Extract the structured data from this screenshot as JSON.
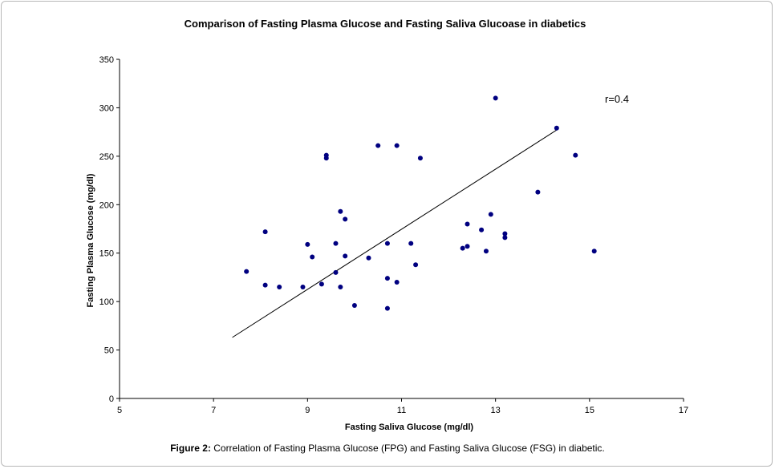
{
  "chart_data": {
    "type": "scatter",
    "title": "Comparison of Fasting Plasma Glucose and Fasting Saliva Glucoase in diabetics",
    "xlabel": "Fasting Saliva Glucose (mg/dl)",
    "ylabel": "Fasting Plasma Glucose (mg/dl)",
    "xlim": [
      5,
      17
    ],
    "ylim": [
      0,
      350
    ],
    "x_ticks": [
      5,
      7,
      9,
      11,
      13,
      15,
      17
    ],
    "y_ticks": [
      0,
      50,
      100,
      150,
      200,
      250,
      300,
      350
    ],
    "grid": false,
    "legend": "none",
    "marker_color": "#000080",
    "annotation": "r=0.4",
    "trendline": {
      "x": [
        7.4,
        14.3
      ],
      "y": [
        63,
        277
      ]
    },
    "points": [
      {
        "x": 7.7,
        "y": 131
      },
      {
        "x": 8.1,
        "y": 172
      },
      {
        "x": 8.1,
        "y": 117
      },
      {
        "x": 8.4,
        "y": 115
      },
      {
        "x": 8.9,
        "y": 115
      },
      {
        "x": 9.0,
        "y": 159
      },
      {
        "x": 9.1,
        "y": 146
      },
      {
        "x": 9.3,
        "y": 118
      },
      {
        "x": 9.4,
        "y": 251
      },
      {
        "x": 9.4,
        "y": 248
      },
      {
        "x": 9.6,
        "y": 160
      },
      {
        "x": 9.6,
        "y": 130
      },
      {
        "x": 9.7,
        "y": 193
      },
      {
        "x": 9.7,
        "y": 115
      },
      {
        "x": 9.8,
        "y": 185
      },
      {
        "x": 9.8,
        "y": 147
      },
      {
        "x": 10.0,
        "y": 96
      },
      {
        "x": 10.3,
        "y": 145
      },
      {
        "x": 10.5,
        "y": 261
      },
      {
        "x": 10.7,
        "y": 160
      },
      {
        "x": 10.7,
        "y": 124
      },
      {
        "x": 10.7,
        "y": 93
      },
      {
        "x": 10.9,
        "y": 261
      },
      {
        "x": 10.9,
        "y": 120
      },
      {
        "x": 11.2,
        "y": 160
      },
      {
        "x": 11.3,
        "y": 138
      },
      {
        "x": 11.4,
        "y": 248
      },
      {
        "x": 12.3,
        "y": 155
      },
      {
        "x": 12.4,
        "y": 180
      },
      {
        "x": 12.4,
        "y": 157
      },
      {
        "x": 12.7,
        "y": 174
      },
      {
        "x": 12.8,
        "y": 152
      },
      {
        "x": 12.9,
        "y": 190
      },
      {
        "x": 13.0,
        "y": 310
      },
      {
        "x": 13.2,
        "y": 170
      },
      {
        "x": 13.2,
        "y": 166
      },
      {
        "x": 13.9,
        "y": 213
      },
      {
        "x": 14.3,
        "y": 279
      },
      {
        "x": 14.7,
        "y": 251
      },
      {
        "x": 15.1,
        "y": 152
      }
    ]
  },
  "caption": {
    "label": "Figure 2:",
    "text": " Correlation of Fasting Plasma Glucose (FPG) and Fasting Saliva Glucose (FSG) in diabetic."
  }
}
